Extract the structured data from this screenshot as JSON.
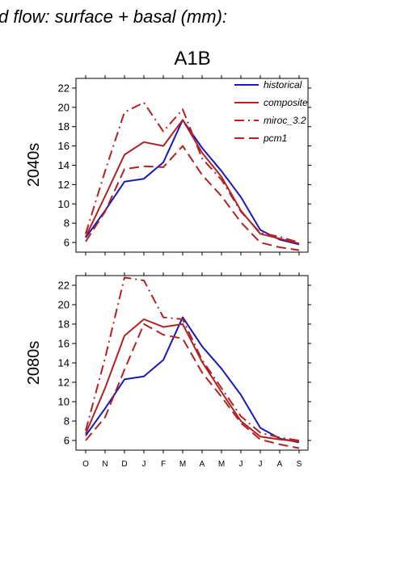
{
  "header": {
    "title": "d flow: surface + basal (mm):",
    "scenario": "A1B"
  },
  "chart_data": [
    {
      "type": "line",
      "row_label": "2040s",
      "categories": [
        "O",
        "N",
        "D",
        "J",
        "F",
        "M",
        "A",
        "M",
        "J",
        "J",
        "A",
        "S"
      ],
      "ylim": [
        5,
        23
      ],
      "yticks": [
        6,
        8,
        10,
        12,
        14,
        16,
        18,
        20,
        22
      ],
      "legend_position": "top-right",
      "series": [
        {
          "name": "historical",
          "color": "#1a1aba",
          "dash": "solid",
          "values": [
            6.5,
            9.3,
            12.3,
            12.6,
            14.3,
            18.7,
            15.8,
            13.4,
            10.7,
            7.3,
            6.3,
            5.8
          ]
        },
        {
          "name": "composite",
          "color": "#b22222",
          "dash": "solid",
          "values": [
            6.6,
            10.8,
            15.1,
            16.4,
            16.0,
            18.7,
            15.3,
            12.8,
            9.3,
            6.9,
            6.4,
            5.9
          ]
        },
        {
          "name": "miroc_3.2",
          "color": "#b22222",
          "dash": "dashdot",
          "values": [
            6.9,
            13.4,
            19.5,
            20.5,
            17.5,
            19.8,
            14.7,
            12.5,
            9.2,
            7.0,
            6.6,
            6.0
          ]
        },
        {
          "name": "pcm1",
          "color": "#b22222",
          "dash": "dashed",
          "values": [
            6.1,
            9.2,
            13.6,
            13.9,
            13.8,
            16.0,
            13.0,
            10.8,
            8.1,
            6.0,
            5.5,
            5.2
          ]
        }
      ]
    },
    {
      "type": "line",
      "row_label": "2080s",
      "categories": [
        "O",
        "N",
        "D",
        "J",
        "F",
        "M",
        "A",
        "M",
        "J",
        "J",
        "A",
        "S"
      ],
      "ylim": [
        5,
        23
      ],
      "yticks": [
        6,
        8,
        10,
        12,
        14,
        16,
        18,
        20,
        22
      ],
      "series": [
        {
          "name": "historical",
          "color": "#1a1aba",
          "dash": "solid",
          "values": [
            6.5,
            9.3,
            12.3,
            12.6,
            14.3,
            18.7,
            15.7,
            13.4,
            10.7,
            7.3,
            6.2,
            5.8
          ]
        },
        {
          "name": "composite",
          "color": "#b22222",
          "dash": "solid",
          "values": [
            6.7,
            11.4,
            16.8,
            18.5,
            17.7,
            18.0,
            14.1,
            11.0,
            8.0,
            6.4,
            6.1,
            5.9
          ]
        },
        {
          "name": "miroc_3.2",
          "color": "#b22222",
          "dash": "dashdot",
          "values": [
            7.0,
            14.5,
            22.8,
            22.5,
            18.7,
            18.5,
            14.3,
            11.4,
            8.5,
            6.8,
            6.3,
            6.0
          ]
        },
        {
          "name": "pcm1",
          "color": "#b22222",
          "dash": "dashed",
          "values": [
            6.0,
            8.4,
            13.3,
            18.0,
            16.9,
            16.5,
            13.0,
            10.5,
            7.8,
            6.1,
            5.6,
            5.2
          ]
        }
      ]
    }
  ]
}
